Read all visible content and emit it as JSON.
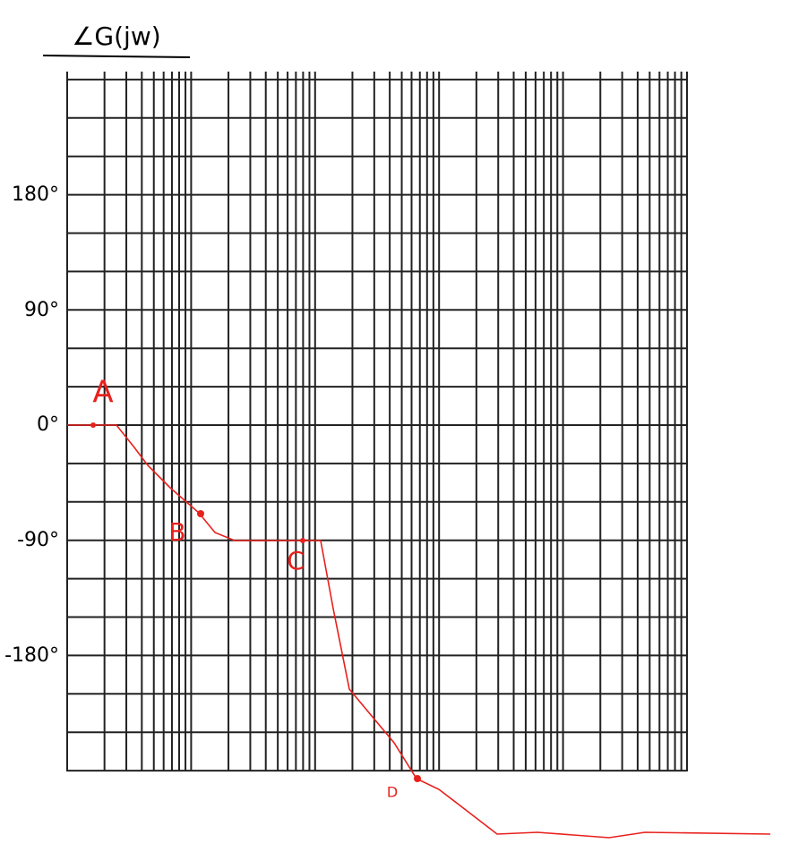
{
  "title": "∠G(jw)",
  "y_labels": [
    "180°",
    "90°",
    "0°",
    "-90°",
    "-180°"
  ],
  "points": [
    "A",
    "B",
    "C",
    "D"
  ]
}
